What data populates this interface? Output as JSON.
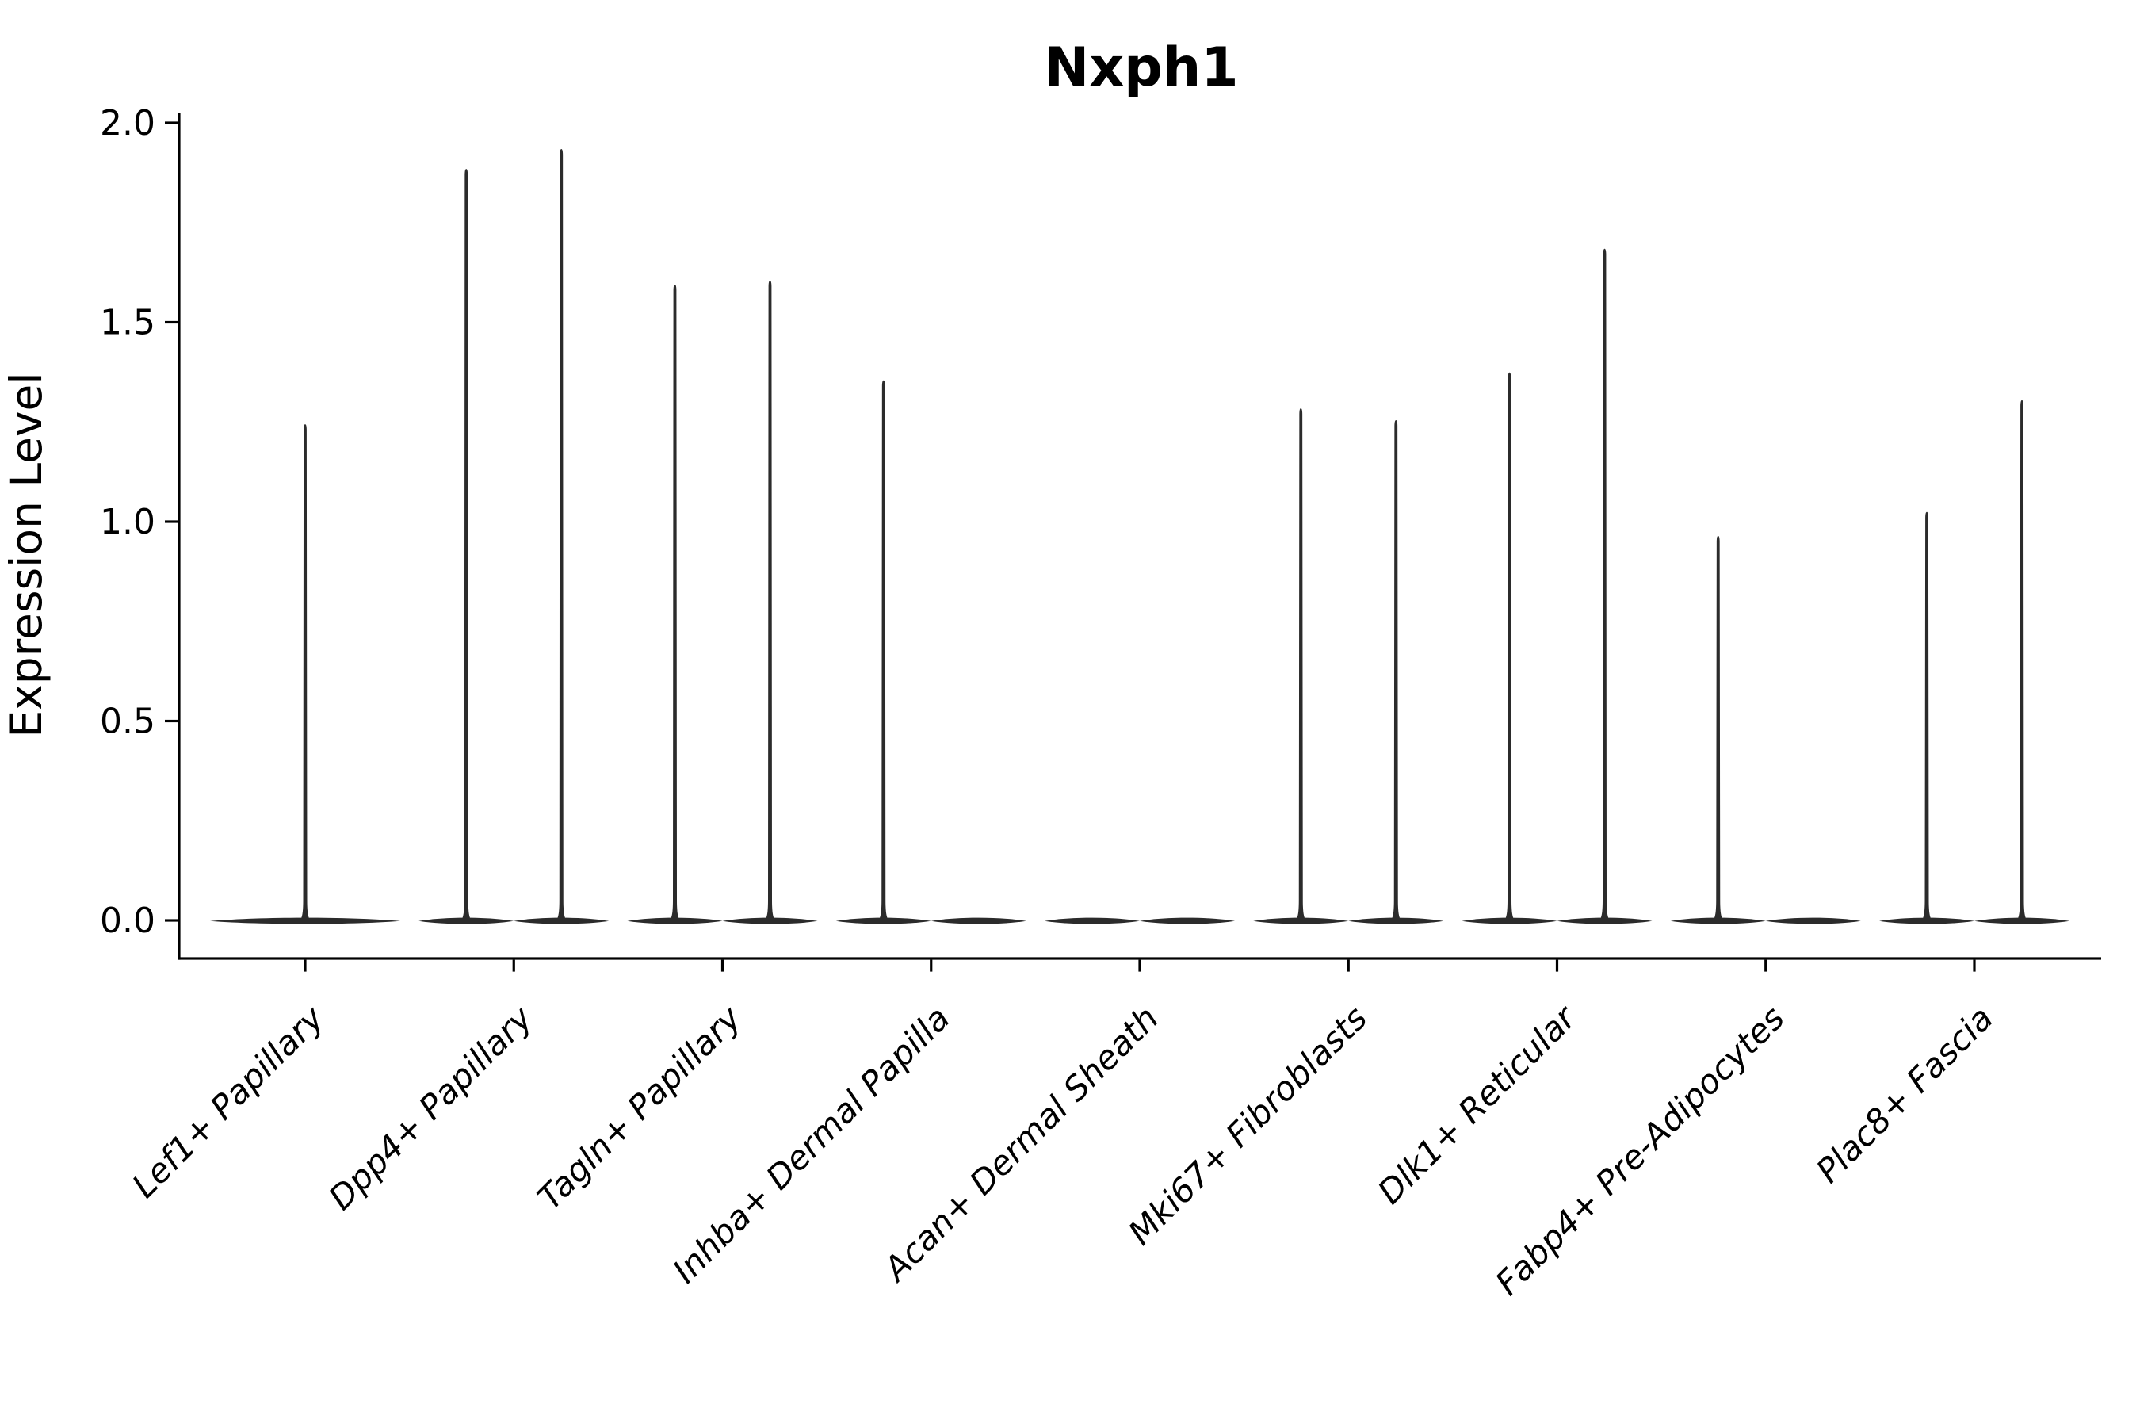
{
  "figure": {
    "background": "#ffffff"
  },
  "chart_data": {
    "type": "violin",
    "title": "Nxph1",
    "ylabel": "Expression Level",
    "xlabel": "",
    "grid": false,
    "legend": "none",
    "ylim": [
      -0.09,
      2.03
    ],
    "yticks": [
      "0.0",
      "0.5",
      "1.0",
      "1.5",
      "2.0"
    ],
    "ytick_values": [
      0.0,
      0.5,
      1.0,
      1.5,
      2.0
    ],
    "categories": [
      "Lef1+ Papillary",
      "Dpp4+ Papillary",
      "Tagln+ Papillary",
      "Inhba+ Dermal Papilla",
      "Acan+ Dermal Sheath",
      "Mki67+ Fibroblasts",
      "Dlk1+ Reticular",
      "Fabp4+ Pre-Adipocytes",
      "Plac8+ Fascia"
    ],
    "violins": [
      {
        "category": "Lef1+ Papillary",
        "parts": [
          {
            "pos": "center",
            "max": 1.24
          }
        ]
      },
      {
        "category": "Dpp4+ Papillary",
        "parts": [
          {
            "pos": "left",
            "max": 1.88
          },
          {
            "pos": "right",
            "max": 1.93
          }
        ]
      },
      {
        "category": "Tagln+ Papillary",
        "parts": [
          {
            "pos": "left",
            "max": 1.59
          },
          {
            "pos": "right",
            "max": 1.6
          }
        ]
      },
      {
        "category": "Inhba+ Dermal Papilla",
        "parts": [
          {
            "pos": "left",
            "max": 1.35
          },
          {
            "pos": "right",
            "max": 0
          }
        ]
      },
      {
        "category": "Acan+ Dermal Sheath",
        "parts": [
          {
            "pos": "left",
            "max": 0
          },
          {
            "pos": "right",
            "max": 0
          }
        ]
      },
      {
        "category": "Mki67+ Fibroblasts",
        "parts": [
          {
            "pos": "left",
            "max": 1.28
          },
          {
            "pos": "right",
            "max": 1.25
          }
        ]
      },
      {
        "category": "Dlk1+ Reticular",
        "parts": [
          {
            "pos": "left",
            "max": 1.37
          },
          {
            "pos": "right",
            "max": 1.68
          }
        ]
      },
      {
        "category": "Fabp4+ Pre-Adipocytes",
        "parts": [
          {
            "pos": "left",
            "max": 0.96
          },
          {
            "pos": "right",
            "max": 0
          }
        ]
      },
      {
        "category": "Plac8+ Fascia",
        "parts": [
          {
            "pos": "left",
            "max": 1.02
          },
          {
            "pos": "right",
            "max": 1.3
          }
        ]
      }
    ],
    "colors": {
      "violin_fill": "#2b2b2b",
      "axis": "#000000",
      "text": "#000000",
      "background": "#ffffff"
    }
  }
}
